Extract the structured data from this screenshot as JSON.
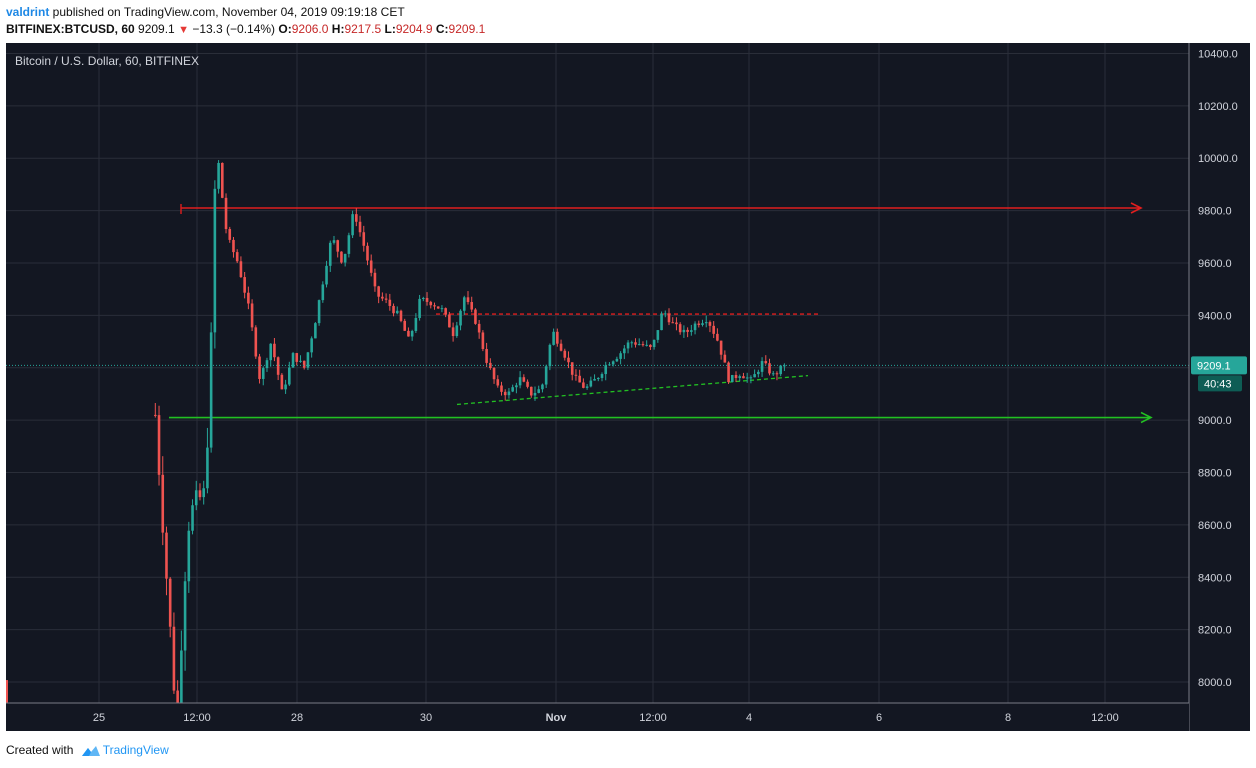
{
  "header": {
    "author": "valdrint",
    "published_text": " published on TradingView.com, November 04, 2019 09:19:18 CET",
    "symbol": "BITFINEX:BTCUSD, 60",
    "last": "9209.1",
    "change_arrow": "▼",
    "change": "−13.3 (−0.14%)",
    "o_label": "O:",
    "o_value": "9206.0",
    "h_label": "H:",
    "h_value": "9217.5",
    "l_label": "L:",
    "l_value": "9204.9",
    "c_label": "C:",
    "c_value": "9209.1"
  },
  "footer": {
    "created_with": "Created with",
    "brand": "TradingView",
    "logo_icon": "tradingview-logo-icon"
  },
  "chart_data": {
    "type": "candlestick",
    "title": "Bitcoin / U.S. Dollar, 60, BITFINEX",
    "ylim": [
      7920,
      10440
    ],
    "y_ticks": [
      8000,
      8200,
      8400,
      8600,
      8800,
      9000,
      9200,
      9400,
      9600,
      9800,
      10000,
      10200,
      10400
    ],
    "x_ticks": [
      "25",
      "12:00",
      "28",
      "30",
      "Nov",
      "12:00",
      "4",
      "6",
      "8",
      "12:00"
    ],
    "current_price_label": "9209.1",
    "countdown_label": "40:43",
    "colors": {
      "background": "#131722",
      "grid": "#2a2e39",
      "up": "#26a69a",
      "down": "#ef5350",
      "resistance": "#e01e1e",
      "support": "#22c022",
      "price_line": "#26a69a",
      "axis_text": "#d1d4dc"
    },
    "price_path": [
      [
        0,
        9020
      ],
      [
        4,
        7800
      ],
      [
        5,
        8300
      ],
      [
        6,
        8600
      ],
      [
        7,
        8680
      ],
      [
        9,
        8720
      ],
      [
        10,
        9200
      ],
      [
        11,
        10050
      ],
      [
        13,
        9700
      ],
      [
        15,
        9600
      ],
      [
        17,
        9420
      ],
      [
        19,
        9150
      ],
      [
        21,
        9300
      ],
      [
        23,
        9100
      ],
      [
        25,
        9250
      ],
      [
        27,
        9200
      ],
      [
        29,
        9380
      ],
      [
        31,
        9600
      ],
      [
        32,
        9700
      ],
      [
        34,
        9600
      ],
      [
        36,
        9800
      ],
      [
        38,
        9650
      ],
      [
        40,
        9480
      ],
      [
        42,
        9450
      ],
      [
        44,
        9400
      ],
      [
        46,
        9300
      ],
      [
        48,
        9460
      ],
      [
        50,
        9450
      ],
      [
        52,
        9420
      ],
      [
        54,
        9330
      ],
      [
        56,
        9470
      ],
      [
        58,
        9380
      ],
      [
        60,
        9230
      ],
      [
        62,
        9120
      ],
      [
        64,
        9100
      ],
      [
        66,
        9160
      ],
      [
        68,
        9100
      ],
      [
        70,
        9120
      ],
      [
        72,
        9340
      ],
      [
        74,
        9260
      ],
      [
        76,
        9160
      ],
      [
        78,
        9120
      ],
      [
        80,
        9160
      ],
      [
        82,
        9220
      ],
      [
        84,
        9250
      ],
      [
        86,
        9300
      ],
      [
        88,
        9290
      ],
      [
        90,
        9270
      ],
      [
        92,
        9420
      ],
      [
        94,
        9360
      ],
      [
        96,
        9330
      ],
      [
        98,
        9370
      ],
      [
        100,
        9390
      ],
      [
        102,
        9300
      ],
      [
        104,
        9150
      ],
      [
        106,
        9180
      ],
      [
        108,
        9150
      ],
      [
        110,
        9220
      ],
      [
        112,
        9170
      ],
      [
        114,
        9209
      ]
    ],
    "annotations": [
      {
        "type": "horizontal_ray",
        "price": 9810,
        "color": "resistance",
        "style": "solid",
        "arrow": true
      },
      {
        "type": "horizontal_ray",
        "price": 9010,
        "color": "support",
        "style": "solid",
        "arrow": true
      },
      {
        "type": "segment",
        "price_start": 9405,
        "price_end": 9405,
        "color": "resistance",
        "style": "dashed"
      },
      {
        "type": "segment",
        "price_start": 9060,
        "price_end": 9170,
        "color": "support",
        "style": "dashed"
      }
    ]
  }
}
